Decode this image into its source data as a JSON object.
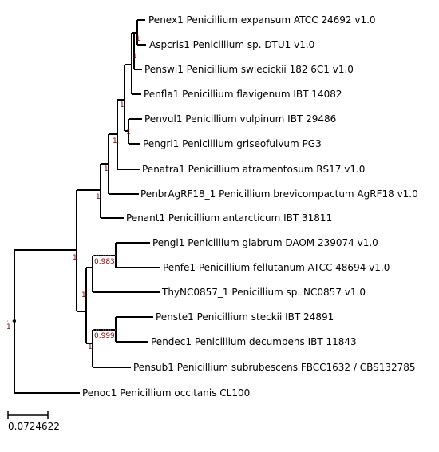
{
  "leaves": {
    "penex1": "Penex1 Penicillium expansum ATCC 24692 v1.0",
    "aspcris1": "Aspcris1 Penicillium sp. DTU1 v1.0",
    "penswi1": "Penswi1 Penicillium swiecickii 182 6C1 v1.0",
    "penfla1": "Penfla1 Penicillium flavigenum IBT 14082",
    "penvul1": "Penvul1 Penicillium vulpinum IBT 29486",
    "pengri1": "Pengri1 Penicillium griseofulvum PG3",
    "penatra1": "Penatra1 Penicillium atramentosum RS17 v1.0",
    "penbr": "PenbrAgRF18_1 Penicillium brevicompactum AgRF18 v1.0",
    "penant1": "Penant1 Penicillium antarcticum IBT 31811",
    "pengl1": "Pengl1 Penicillium glabrum DAOM 239074 v1.0",
    "penfe1": "Penfe1 Penicillium fellutanum ATCC 48694 v1.0",
    "thync": "ThyNC0857_1 Penicillium sp. NC0857 v1.0",
    "penste1": "Penste1 Penicillium steckii IBT 24891",
    "pendec1": "Pendec1 Penicillium decumbens IBT 11843",
    "pensub1": "Pensub1 Penicillium subrubescens FBCC1632 / CBS132785",
    "penoc1": "Penoc1 Penicillium occitanis CL100"
  },
  "support": {
    "root": "1",
    "expansum_sp": "1",
    "penswi": "1",
    "flavigenum_group": "1",
    "vulpinum_griseo": "1",
    "upper_clade": "1",
    "atramentosum": "1",
    "brevicompactum": "1",
    "lower_big": "1",
    "glabrum_fellutanum": "0.983",
    "glabrum_group": "1",
    "steckii_decumbens": "0.999",
    "steckii_group": "1"
  },
  "scale": {
    "label": "0.0724622"
  }
}
